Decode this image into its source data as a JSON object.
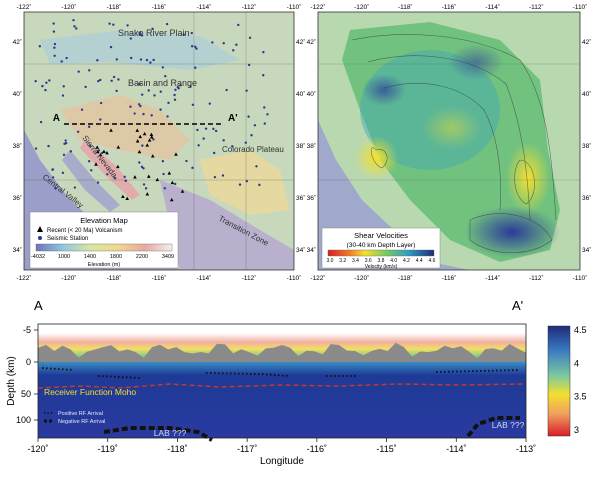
{
  "map_left": {
    "title": "Elevation Map",
    "legend": {
      "volcanism": "Recent (< 20 Ma) Volcanism",
      "station": "Seismic Station",
      "ticks": [
        "-4032",
        "1000",
        "1400",
        "1800",
        "2200",
        "3409"
      ],
      "label": "Elevation (m)"
    },
    "regions": [
      "Snake River Plain",
      "Basin and Range",
      "Colorado Plateau",
      "Central Valley",
      "Sierra Nevada",
      "Transition Zone"
    ],
    "section_start": "A",
    "section_end": "A'"
  },
  "map_right": {
    "legend": {
      "title_line1": "Shear Velocities",
      "title_line2": "(30-40 km Depth Layer)",
      "ticks": [
        "3.0",
        "3.2",
        "3.4",
        "3.6",
        "3.8",
        "4.0",
        "4.2",
        "4.4",
        "4.6"
      ],
      "label": "Velocity (km/s)"
    }
  },
  "lon_ticks": [
    "-122˚",
    "-120˚",
    "-118˚",
    "-116˚",
    "-114˚",
    "-112˚",
    "-110˚"
  ],
  "lat_ticks": [
    "42˚",
    "40˚",
    "38˚",
    "36˚",
    "34˚"
  ],
  "section": {
    "start_label": "A",
    "end_label": "A'",
    "ylabel": "Depth (km)",
    "xlabel": "Longitude",
    "yticks": [
      "-5",
      "0",
      "50",
      "100"
    ],
    "xticks": [
      "-120˚",
      "-119˚",
      "-118˚",
      "-117˚",
      "-116˚",
      "-115˚",
      "-114˚",
      "-113˚"
    ],
    "moho_label": "Receiver Function Moho",
    "lab_left": "LAB ???",
    "lab_right": "LAB ???",
    "legend_positive": "Positive RF Arrival",
    "legend_negative": "Negative RF Arrival",
    "colorbar_ticks": [
      "4.5",
      "4",
      "3.5",
      "3"
    ]
  },
  "colors": {
    "ocean": "#9a9ec8",
    "land_base": "#c8d8bc",
    "velocity_slow": "#d81e26",
    "velocity_fast": "#1e2a7a",
    "moho_line": "#c0392b"
  }
}
